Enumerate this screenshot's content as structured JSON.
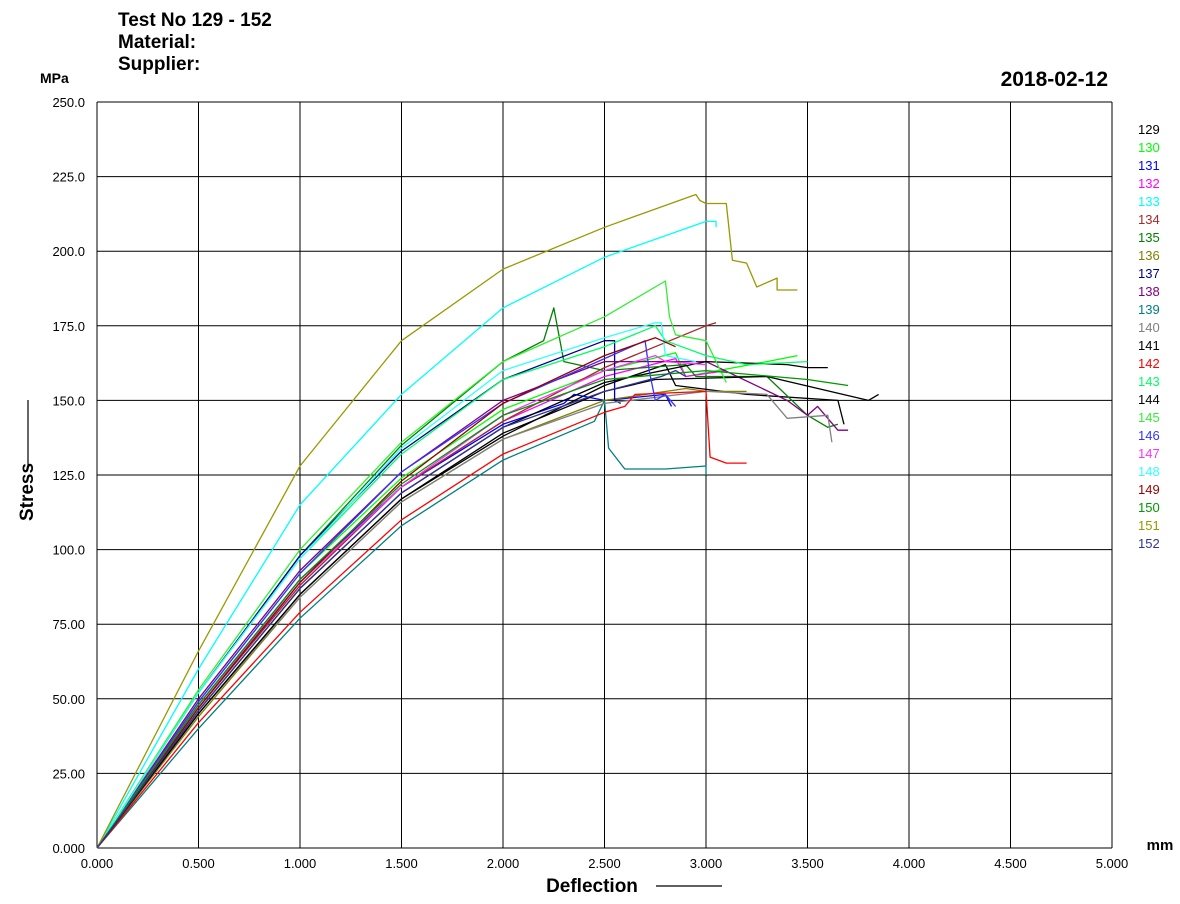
{
  "header": {
    "test_no": "Test No  129 - 152",
    "material": "Material:",
    "supplier": "Supplier:",
    "date": "2018-02-12",
    "y_unit": "MPa"
  },
  "chart_data": {
    "type": "line",
    "title": "Test No  129 - 152",
    "xlabel": "Deflection",
    "ylabel": "Stress",
    "x_unit": "mm",
    "y_unit": "MPa",
    "xlim": [
      0,
      5
    ],
    "ylim": [
      0,
      250
    ],
    "x_ticks": [
      "0.000",
      "0.500",
      "1.000",
      "1.500",
      "2.000",
      "2.500",
      "3.000",
      "3.500",
      "4.000",
      "4.500",
      "5.000"
    ],
    "y_ticks": [
      "0.000",
      "25.00",
      "50.00",
      "75.00",
      "100.0",
      "125.0",
      "150.0",
      "175.0",
      "200.0",
      "225.0",
      "250.0"
    ],
    "grid": true,
    "legend_position": "right",
    "series": [
      {
        "name": "129",
        "color": "#000000",
        "points": [
          [
            0,
            0
          ],
          [
            0.5,
            45
          ],
          [
            1,
            85
          ],
          [
            1.5,
            117
          ],
          [
            2,
            138
          ],
          [
            2.5,
            155
          ],
          [
            2.8,
            162
          ],
          [
            2.85,
            155
          ],
          [
            3.2,
            152
          ],
          [
            3.65,
            150
          ],
          [
            3.68,
            142
          ]
        ]
      },
      {
        "name": "130",
        "color": "#00ff00",
        "points": [
          [
            0,
            0
          ],
          [
            0.5,
            49
          ],
          [
            1,
            92
          ],
          [
            1.5,
            124
          ],
          [
            2,
            147
          ],
          [
            2.5,
            160
          ],
          [
            2.85,
            166
          ],
          [
            2.9,
            158
          ],
          [
            3.3,
            163
          ],
          [
            3.45,
            165
          ]
        ]
      },
      {
        "name": "131",
        "color": "#0000ff",
        "points": [
          [
            0,
            0
          ],
          [
            0.5,
            48
          ],
          [
            1,
            90
          ],
          [
            1.5,
            121
          ],
          [
            2,
            142
          ],
          [
            2.3,
            149
          ],
          [
            2.35,
            152
          ],
          [
            2.5,
            150
          ],
          [
            2.8,
            152
          ],
          [
            2.83,
            148
          ]
        ]
      },
      {
        "name": "132",
        "color": "#ff00ff",
        "points": [
          [
            0,
            0
          ],
          [
            0.5,
            47
          ],
          [
            1,
            89
          ],
          [
            1.5,
            121
          ],
          [
            2,
            143
          ],
          [
            2.5,
            158
          ],
          [
            2.85,
            164
          ],
          [
            2.9,
            158
          ],
          [
            3.1,
            160
          ]
        ]
      },
      {
        "name": "133",
        "color": "#00ffff",
        "points": [
          [
            0,
            0
          ],
          [
            0.5,
            60
          ],
          [
            1,
            115
          ],
          [
            1.5,
            152
          ],
          [
            2,
            181
          ],
          [
            2.5,
            198
          ],
          [
            3.0,
            210
          ],
          [
            3.05,
            210
          ],
          [
            3.05,
            208
          ]
        ]
      },
      {
        "name": "134",
        "color": "#a52a2a",
        "points": [
          [
            0,
            0
          ],
          [
            0.5,
            47
          ],
          [
            1,
            88
          ],
          [
            1.5,
            121
          ],
          [
            2,
            143
          ],
          [
            2.5,
            161
          ],
          [
            3.0,
            175
          ],
          [
            3.05,
            176
          ]
        ]
      },
      {
        "name": "135",
        "color": "#008000",
        "points": [
          [
            0,
            0
          ],
          [
            0.5,
            52
          ],
          [
            1,
            98
          ],
          [
            1.5,
            135
          ],
          [
            2,
            163
          ],
          [
            2.2,
            170
          ],
          [
            2.25,
            181
          ],
          [
            2.3,
            163
          ],
          [
            2.5,
            160
          ],
          [
            2.9,
            162
          ],
          [
            2.95,
            158
          ],
          [
            3.3,
            158
          ],
          [
            3.5,
            145
          ],
          [
            3.6,
            141
          ],
          [
            3.65,
            142
          ]
        ]
      },
      {
        "name": "136",
        "color": "#808000",
        "points": [
          [
            0,
            0
          ],
          [
            0.5,
            44
          ],
          [
            1,
            84
          ],
          [
            1.5,
            116
          ],
          [
            2,
            137
          ],
          [
            2.5,
            150
          ],
          [
            2.9,
            154
          ],
          [
            3.0,
            153
          ],
          [
            3.2,
            153
          ]
        ]
      },
      {
        "name": "137",
        "color": "#00008b",
        "points": [
          [
            0,
            0
          ],
          [
            0.5,
            52
          ],
          [
            1,
            98
          ],
          [
            1.5,
            133
          ],
          [
            2,
            157
          ],
          [
            2.5,
            170
          ],
          [
            2.55,
            170
          ],
          [
            2.55,
            150
          ],
          [
            2.58,
            149
          ]
        ]
      },
      {
        "name": "138",
        "color": "#800080",
        "points": [
          [
            0,
            0
          ],
          [
            0.5,
            50
          ],
          [
            1,
            93
          ],
          [
            1.5,
            126
          ],
          [
            2,
            150
          ],
          [
            2.5,
            163
          ],
          [
            3.0,
            163
          ],
          [
            3.4,
            150
          ],
          [
            3.5,
            145
          ],
          [
            3.55,
            148
          ],
          [
            3.65,
            140
          ],
          [
            3.7,
            140
          ]
        ]
      },
      {
        "name": "139",
        "color": "#008080",
        "points": [
          [
            0,
            0
          ],
          [
            0.5,
            40
          ],
          [
            1,
            77
          ],
          [
            1.5,
            108
          ],
          [
            2,
            130
          ],
          [
            2.45,
            143
          ],
          [
            2.5,
            150
          ],
          [
            2.52,
            134
          ],
          [
            2.6,
            127
          ],
          [
            2.8,
            127
          ],
          [
            3.0,
            128
          ],
          [
            3.0,
            125
          ]
        ]
      },
      {
        "name": "140",
        "color": "#808080",
        "points": [
          [
            0,
            0
          ],
          [
            0.5,
            45
          ],
          [
            1,
            84
          ],
          [
            1.5,
            116
          ],
          [
            2,
            137
          ],
          [
            2.5,
            149
          ],
          [
            3.0,
            153
          ],
          [
            3.3,
            152
          ],
          [
            3.4,
            144
          ],
          [
            3.6,
            145
          ],
          [
            3.62,
            136
          ]
        ]
      },
      {
        "name": "141",
        "color": "#000000",
        "points": [
          [
            0,
            0
          ],
          [
            0.5,
            46
          ],
          [
            1,
            87
          ],
          [
            1.5,
            119
          ],
          [
            2,
            141
          ],
          [
            2.5,
            156
          ],
          [
            3.0,
            163
          ],
          [
            3.4,
            162
          ],
          [
            3.5,
            161
          ],
          [
            3.6,
            161
          ]
        ]
      },
      {
        "name": "142",
        "color": "#ff0000",
        "points": [
          [
            0,
            0
          ],
          [
            0.5,
            42
          ],
          [
            1,
            79
          ],
          [
            1.5,
            110
          ],
          [
            2,
            132
          ],
          [
            2.5,
            146
          ],
          [
            2.6,
            148
          ],
          [
            2.65,
            152
          ],
          [
            3.0,
            153
          ],
          [
            3.02,
            131
          ],
          [
            3.1,
            129
          ],
          [
            3.2,
            129
          ]
        ]
      },
      {
        "name": "143",
        "color": "#00ff66",
        "points": [
          [
            0,
            0
          ],
          [
            0.5,
            52
          ],
          [
            1,
            97
          ],
          [
            1.5,
            132
          ],
          [
            2,
            157
          ],
          [
            2.5,
            168
          ],
          [
            2.75,
            175
          ],
          [
            2.8,
            170
          ],
          [
            3.0,
            165
          ],
          [
            3.2,
            162
          ],
          [
            3.5,
            163
          ]
        ]
      },
      {
        "name": "144",
        "color": "#000000",
        "points": [
          [
            0,
            0
          ],
          [
            0.5,
            45
          ],
          [
            1,
            85
          ],
          [
            1.5,
            117
          ],
          [
            2,
            139
          ],
          [
            2.5,
            153
          ],
          [
            2.75,
            157
          ],
          [
            3.3,
            158
          ],
          [
            3.8,
            150
          ],
          [
            3.85,
            152
          ]
        ]
      },
      {
        "name": "145",
        "color": "#33ee33",
        "points": [
          [
            0,
            0
          ],
          [
            0.5,
            53
          ],
          [
            1,
            100
          ],
          [
            1.5,
            136
          ],
          [
            2,
            163
          ],
          [
            2.5,
            178
          ],
          [
            2.8,
            190
          ],
          [
            2.82,
            178
          ],
          [
            2.85,
            172
          ],
          [
            3.0,
            170
          ],
          [
            3.1,
            156
          ]
        ]
      },
      {
        "name": "146",
        "color": "#3333ff",
        "points": [
          [
            0,
            0
          ],
          [
            0.5,
            49
          ],
          [
            1,
            92
          ],
          [
            1.5,
            126
          ],
          [
            2,
            149
          ],
          [
            2.5,
            164
          ],
          [
            2.7,
            170
          ],
          [
            2.72,
            160
          ],
          [
            2.75,
            150
          ],
          [
            2.8,
            152
          ],
          [
            2.85,
            148
          ]
        ]
      },
      {
        "name": "147",
        "color": "#ff33ff",
        "points": [
          [
            0,
            0
          ],
          [
            0.5,
            48
          ],
          [
            1,
            89
          ],
          [
            1.5,
            121
          ],
          [
            2,
            145
          ],
          [
            2.5,
            160
          ],
          [
            2.75,
            165
          ],
          [
            2.8,
            163
          ],
          [
            3.0,
            162
          ]
        ]
      },
      {
        "name": "148",
        "color": "#33ffff",
        "points": [
          [
            0,
            0
          ],
          [
            0.5,
            52
          ],
          [
            1,
            97
          ],
          [
            1.5,
            134
          ],
          [
            2,
            160
          ],
          [
            2.5,
            171
          ],
          [
            2.75,
            176
          ],
          [
            2.78,
            176
          ],
          [
            2.8,
            165
          ],
          [
            2.95,
            163
          ]
        ]
      },
      {
        "name": "149",
        "color": "#990000",
        "points": [
          [
            0,
            0
          ],
          [
            0.5,
            47
          ],
          [
            1,
            89
          ],
          [
            1.5,
            123
          ],
          [
            2,
            149
          ],
          [
            2.5,
            165
          ],
          [
            2.75,
            171
          ],
          [
            2.85,
            168
          ]
        ]
      },
      {
        "name": "150",
        "color": "#009900",
        "points": [
          [
            0,
            0
          ],
          [
            0.5,
            48
          ],
          [
            1,
            90
          ],
          [
            1.5,
            122
          ],
          [
            2,
            145
          ],
          [
            2.5,
            157
          ],
          [
            3.0,
            160
          ],
          [
            3.5,
            157
          ],
          [
            3.7,
            155
          ]
        ]
      },
      {
        "name": "151",
        "color": "#999900",
        "points": [
          [
            0,
            0
          ],
          [
            0.5,
            66
          ],
          [
            1,
            128
          ],
          [
            1.5,
            170
          ],
          [
            2,
            194
          ],
          [
            2.5,
            208
          ],
          [
            2.95,
            219
          ],
          [
            2.97,
            217
          ],
          [
            3.0,
            216
          ],
          [
            3.1,
            216
          ],
          [
            3.13,
            197
          ],
          [
            3.2,
            196
          ],
          [
            3.25,
            188
          ],
          [
            3.35,
            191
          ],
          [
            3.35,
            187
          ],
          [
            3.45,
            187
          ]
        ]
      },
      {
        "name": "152",
        "color": "#333399",
        "points": [
          [
            0,
            0
          ],
          [
            0.5,
            46
          ],
          [
            1,
            87
          ],
          [
            1.5,
            119
          ],
          [
            2,
            141
          ],
          [
            2.5,
            153
          ],
          [
            2.78,
            158
          ],
          [
            2.85,
            160
          ],
          [
            2.9,
            158
          ]
        ]
      }
    ]
  }
}
